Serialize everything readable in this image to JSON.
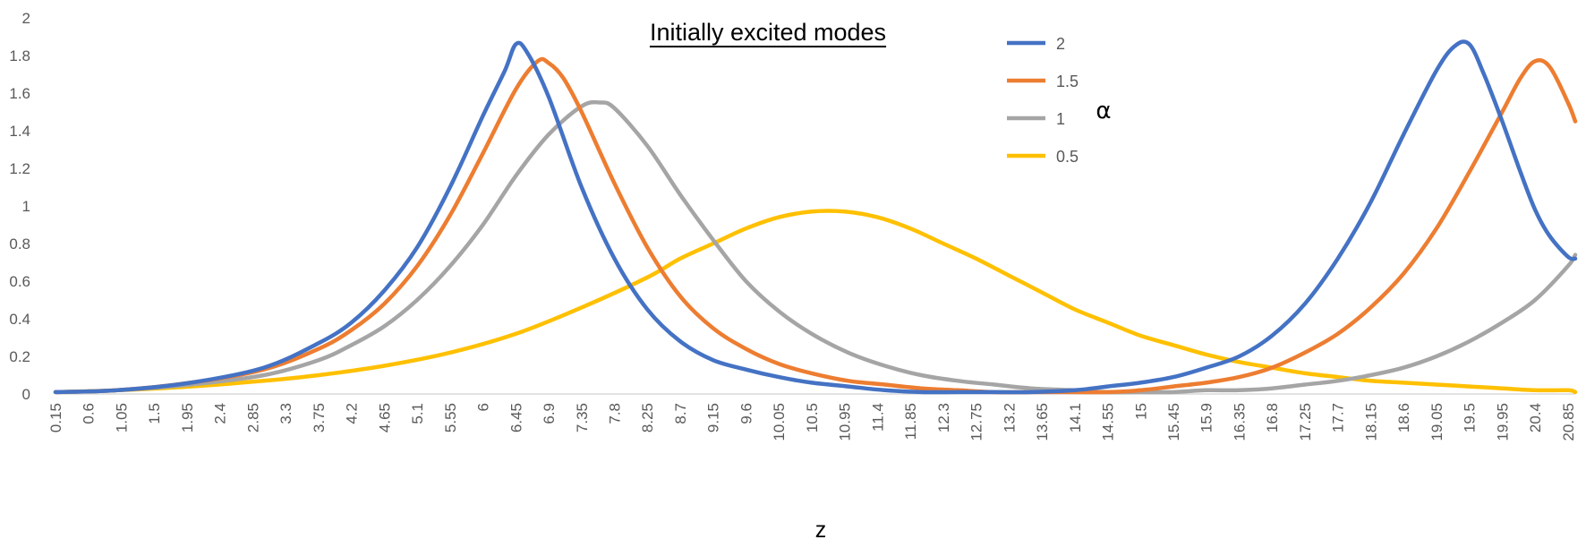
{
  "chart_data": {
    "type": "line",
    "title": "Initially excited modes",
    "xlabel": "z",
    "ylabel": "",
    "ylim": [
      0,
      2
    ],
    "xlim": [
      0.15,
      20.95
    ],
    "y_ticks": [
      "0",
      "0.2",
      "0.4",
      "0.6",
      "0.8",
      "1",
      "1.2",
      "1.4",
      "1.6",
      "1.8",
      "2"
    ],
    "x_ticks": [
      "0.15",
      "0.6",
      "1.05",
      "1.5",
      "1.95",
      "2.4",
      "2.85",
      "3.3",
      "3.75",
      "4.2",
      "4.65",
      "5.1",
      "5.55",
      "6",
      "6.45",
      "6.9",
      "7.35",
      "7.8",
      "8.25",
      "8.7",
      "9.15",
      "9.6",
      "10.05",
      "10.5",
      "10.95",
      "11.4",
      "11.85",
      "12.3",
      "12.75",
      "13.2",
      "13.65",
      "14.1",
      "14.55",
      "15",
      "15.45",
      "15.9",
      "16.35",
      "16.8",
      "17.25",
      "17.7",
      "18.15",
      "18.6",
      "19.05",
      "19.5",
      "19.95",
      "20.4",
      "20.85"
    ],
    "grid": false,
    "legend_title": "α",
    "legend_position": "top-right",
    "series": [
      {
        "name": "2",
        "color": "#4472C4",
        "x": [
          0.15,
          1.0,
          2.0,
          3.0,
          3.75,
          4.2,
          4.65,
          5.1,
          5.55,
          6.0,
          6.3,
          6.45,
          6.6,
          6.9,
          7.35,
          7.8,
          8.25,
          8.7,
          9.15,
          9.6,
          10.05,
          10.5,
          11.0,
          11.5,
          12.0,
          12.5,
          13.0,
          13.5,
          14.1,
          14.55,
          15.0,
          15.45,
          15.9,
          16.35,
          16.8,
          17.25,
          17.7,
          18.15,
          18.6,
          19.05,
          19.3,
          19.5,
          19.7,
          19.95,
          20.2,
          20.4,
          20.6,
          20.85,
          20.95
        ],
        "values": [
          0.01,
          0.02,
          0.06,
          0.14,
          0.27,
          0.38,
          0.55,
          0.78,
          1.1,
          1.48,
          1.72,
          1.86,
          1.82,
          1.58,
          1.1,
          0.72,
          0.45,
          0.28,
          0.18,
          0.13,
          0.09,
          0.06,
          0.04,
          0.02,
          0.01,
          0.01,
          0.01,
          0.01,
          0.02,
          0.04,
          0.06,
          0.09,
          0.14,
          0.2,
          0.31,
          0.48,
          0.72,
          1.02,
          1.38,
          1.72,
          1.85,
          1.86,
          1.7,
          1.45,
          1.18,
          0.98,
          0.84,
          0.73,
          0.72
        ]
      },
      {
        "name": "1.5",
        "color": "#ED7D31",
        "x": [
          0.15,
          1.0,
          2.0,
          3.0,
          3.75,
          4.2,
          4.65,
          5.1,
          5.55,
          6.0,
          6.45,
          6.75,
          6.9,
          7.1,
          7.35,
          7.8,
          8.25,
          8.7,
          9.15,
          9.6,
          10.05,
          10.5,
          11.0,
          11.5,
          12.0,
          12.5,
          13.0,
          13.5,
          14.1,
          14.55,
          15.0,
          15.45,
          15.9,
          16.35,
          16.8,
          17.25,
          17.7,
          18.15,
          18.6,
          19.05,
          19.5,
          19.95,
          20.2,
          20.4,
          20.6,
          20.85,
          20.95
        ],
        "values": [
          0.01,
          0.02,
          0.06,
          0.13,
          0.24,
          0.34,
          0.48,
          0.68,
          0.95,
          1.28,
          1.62,
          1.77,
          1.76,
          1.68,
          1.5,
          1.12,
          0.78,
          0.52,
          0.35,
          0.24,
          0.16,
          0.11,
          0.07,
          0.05,
          0.03,
          0.02,
          0.01,
          0.01,
          0.01,
          0.01,
          0.02,
          0.04,
          0.06,
          0.09,
          0.14,
          0.22,
          0.32,
          0.46,
          0.64,
          0.88,
          1.18,
          1.5,
          1.68,
          1.77,
          1.74,
          1.55,
          1.45
        ]
      },
      {
        "name": "1",
        "color": "#A5A5A5",
        "x": [
          0.15,
          1.0,
          2.0,
          3.0,
          3.75,
          4.2,
          4.65,
          5.1,
          5.55,
          6.0,
          6.45,
          6.9,
          7.35,
          7.6,
          7.8,
          8.25,
          8.7,
          9.15,
          9.6,
          10.05,
          10.5,
          11.0,
          11.5,
          12.0,
          12.5,
          13.0,
          13.5,
          14.1,
          14.55,
          15.0,
          15.45,
          15.9,
          16.35,
          16.8,
          17.25,
          17.7,
          18.15,
          18.6,
          19.05,
          19.5,
          19.95,
          20.4,
          20.85,
          20.95
        ],
        "values": [
          0.01,
          0.02,
          0.05,
          0.1,
          0.18,
          0.26,
          0.36,
          0.5,
          0.68,
          0.9,
          1.16,
          1.38,
          1.53,
          1.55,
          1.52,
          1.32,
          1.06,
          0.82,
          0.6,
          0.44,
          0.32,
          0.22,
          0.15,
          0.1,
          0.07,
          0.05,
          0.03,
          0.02,
          0.01,
          0.01,
          0.01,
          0.02,
          0.02,
          0.03,
          0.05,
          0.07,
          0.1,
          0.14,
          0.2,
          0.28,
          0.38,
          0.5,
          0.68,
          0.74
        ]
      },
      {
        "name": "0.5",
        "color": "#FFC000",
        "x": [
          0.15,
          1.0,
          2.0,
          3.0,
          3.75,
          4.65,
          5.55,
          6.45,
          7.35,
          8.25,
          8.7,
          9.15,
          9.6,
          10.05,
          10.5,
          10.95,
          11.4,
          11.85,
          12.3,
          12.75,
          13.2,
          13.65,
          14.1,
          14.55,
          15.0,
          15.45,
          15.9,
          16.35,
          16.8,
          17.25,
          17.7,
          18.15,
          18.6,
          19.05,
          19.5,
          19.95,
          20.4,
          20.85,
          20.95
        ],
        "values": [
          0.01,
          0.02,
          0.04,
          0.07,
          0.1,
          0.15,
          0.22,
          0.32,
          0.46,
          0.62,
          0.72,
          0.8,
          0.88,
          0.94,
          0.97,
          0.97,
          0.94,
          0.88,
          0.8,
          0.72,
          0.63,
          0.54,
          0.45,
          0.38,
          0.31,
          0.26,
          0.21,
          0.17,
          0.14,
          0.11,
          0.09,
          0.07,
          0.06,
          0.05,
          0.04,
          0.03,
          0.02,
          0.02,
          0.01
        ]
      }
    ]
  }
}
